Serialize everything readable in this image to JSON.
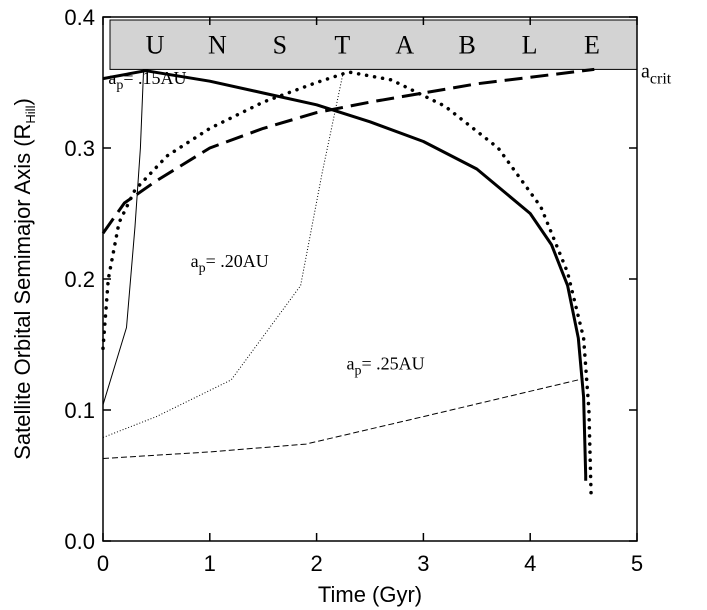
{
  "chart_data": {
    "type": "line",
    "xlabel": "Time (Gyr)",
    "ylabel_main": "Satellite Orbital Semimajor Axis (R",
    "ylabel_sub": "Hill",
    "ylabel_close": ")",
    "xlim": [
      0,
      5
    ],
    "ylim": [
      0,
      0.4
    ],
    "x_ticks": [
      0,
      1,
      2,
      3,
      4,
      5
    ],
    "x_tick_labels": [
      "0",
      "1",
      "2",
      "3",
      "4",
      "5"
    ],
    "y_ticks": [
      0,
      0.1,
      0.2,
      0.3,
      0.4
    ],
    "y_tick_labels": [
      "0.0",
      "0.1",
      "0.2",
      "0.3",
      "0.4"
    ],
    "unstable_band": {
      "letters": [
        "U",
        "N",
        "S",
        "T",
        "A",
        "B",
        "L",
        "E"
      ],
      "y_range": [
        0.36,
        0.4
      ],
      "fill": "#d3d3d3"
    },
    "acrit": {
      "main": "a",
      "sub": "crit",
      "value": 0.36
    },
    "series": [
      {
        "style": "thin-solid",
        "points": [
          [
            0,
            0.104
          ],
          [
            0.22,
            0.163
          ],
          [
            0.3,
            0.24
          ],
          [
            0.35,
            0.3
          ],
          [
            0.38,
            0.36
          ]
        ]
      },
      {
        "style": "thin-dotted",
        "points": [
          [
            0,
            0.079
          ],
          [
            0.5,
            0.095
          ],
          [
            1.2,
            0.123
          ],
          [
            1.85,
            0.195
          ],
          [
            2.05,
            0.28
          ],
          [
            2.25,
            0.358
          ]
        ]
      },
      {
        "style": "thin-dashed",
        "points": [
          [
            0,
            0.063
          ],
          [
            1.0,
            0.068
          ],
          [
            1.9,
            0.074
          ],
          [
            3.0,
            0.095
          ],
          [
            4.5,
            0.124
          ]
        ]
      },
      {
        "style": "thick-solid",
        "points": [
          [
            0,
            0.353
          ],
          [
            0.4,
            0.359
          ],
          [
            1.0,
            0.351
          ],
          [
            1.5,
            0.342
          ],
          [
            2.0,
            0.333
          ],
          [
            2.5,
            0.32
          ],
          [
            3.0,
            0.305
          ],
          [
            3.5,
            0.284
          ],
          [
            4.0,
            0.25
          ],
          [
            4.2,
            0.226
          ],
          [
            4.35,
            0.195
          ],
          [
            4.45,
            0.155
          ],
          [
            4.5,
            0.11
          ],
          [
            4.52,
            0.05
          ],
          [
            4.52,
            0.046
          ]
        ]
      },
      {
        "style": "thick-dotted",
        "points": [
          [
            0,
            0.147
          ],
          [
            0.05,
            0.2
          ],
          [
            0.15,
            0.243
          ],
          [
            0.3,
            0.268
          ],
          [
            0.6,
            0.294
          ],
          [
            1.0,
            0.315
          ],
          [
            1.5,
            0.335
          ],
          [
            2.0,
            0.35
          ],
          [
            2.3,
            0.358
          ],
          [
            2.7,
            0.352
          ],
          [
            3.2,
            0.332
          ],
          [
            3.7,
            0.3
          ],
          [
            4.1,
            0.255
          ],
          [
            4.35,
            0.205
          ],
          [
            4.5,
            0.155
          ],
          [
            4.55,
            0.1
          ],
          [
            4.57,
            0.035
          ]
        ]
      },
      {
        "style": "thick-dashed",
        "points": [
          [
            0,
            0.235
          ],
          [
            0.2,
            0.258
          ],
          [
            0.5,
            0.275
          ],
          [
            1.0,
            0.3
          ],
          [
            1.5,
            0.315
          ],
          [
            2.0,
            0.327
          ],
          [
            2.5,
            0.335
          ],
          [
            3.0,
            0.342
          ],
          [
            3.5,
            0.349
          ],
          [
            4.0,
            0.354
          ],
          [
            4.6,
            0.36
          ]
        ]
      }
    ],
    "annotations": [
      {
        "main": "a",
        "sub": "p",
        "rest": "= .15AU",
        "x": 0.05,
        "y": 0.349
      },
      {
        "main": "a",
        "sub": "p",
        "rest": "= .20AU",
        "x": 0.82,
        "y": 0.209
      },
      {
        "main": "a",
        "sub": "p",
        "rest": "= .25AU",
        "x": 2.28,
        "y": 0.131
      }
    ]
  }
}
